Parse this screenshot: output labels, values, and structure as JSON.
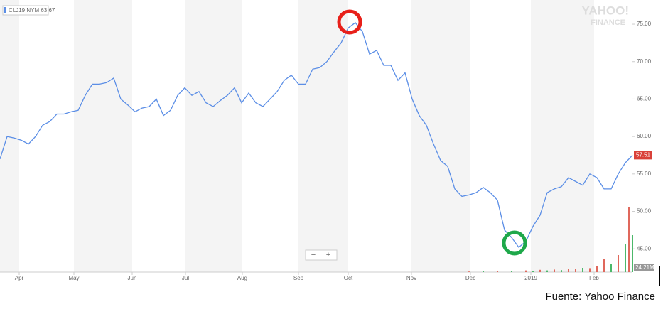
{
  "chart_data": {
    "type": "line",
    "x": [
      0,
      1,
      2,
      3,
      4,
      5,
      6,
      7,
      8,
      9,
      10,
      11,
      12,
      13,
      14,
      15,
      16,
      17,
      18,
      19,
      20,
      21,
      22,
      23,
      24,
      25,
      26,
      27,
      28,
      29,
      30,
      31,
      32,
      33,
      34,
      35,
      36,
      37,
      38,
      39,
      40,
      41,
      42,
      43,
      44,
      45,
      46,
      47,
      48,
      49,
      50,
      51,
      52,
      53,
      54,
      55,
      56,
      57,
      58,
      59,
      60,
      61,
      62,
      63,
      64,
      65,
      66,
      67,
      68,
      69,
      70,
      71,
      72,
      73,
      74,
      75,
      76,
      77,
      78,
      79,
      80,
      81,
      82,
      83,
      84,
      85,
      86,
      87,
      88,
      89
    ],
    "series": [
      {
        "name": "CLJ19 NYM 63.67",
        "color": "#5b8ee6",
        "values": [
          57,
          60,
          59.8,
          59.5,
          59,
          60,
          61.5,
          62,
          63,
          63,
          63.3,
          63.5,
          65.5,
          67,
          67,
          67.2,
          67.8,
          65,
          64.2,
          63.3,
          63.8,
          64,
          65,
          62.8,
          63.5,
          65.5,
          66.5,
          65.5,
          66,
          64.5,
          64,
          64.8,
          65.5,
          66.5,
          64.5,
          65.8,
          64.5,
          64,
          65,
          66,
          67.5,
          68.2,
          67,
          67,
          69,
          69.2,
          70,
          71.3,
          72.5,
          74.5,
          75.2,
          74,
          71,
          71.5,
          69.5,
          69.5,
          67.5,
          68.5,
          65,
          62.8,
          61.5,
          59,
          56.8,
          56,
          53,
          52,
          52.2,
          52.5,
          53.2,
          52.5,
          51.5,
          47.5,
          46.5,
          45.2,
          46,
          48,
          49.5,
          52.5,
          53,
          53.3,
          54.5,
          54,
          53.5,
          55,
          54.5,
          53,
          53,
          55,
          56.5,
          57.5
        ]
      }
    ],
    "xlim": [
      0,
      89
    ],
    "xticks": [
      {
        "value": 2.7,
        "label": "Apr"
      },
      {
        "value": 10.4,
        "label": "May"
      },
      {
        "value": 18.6,
        "label": "Jun"
      },
      {
        "value": 26.1,
        "label": "Jul"
      },
      {
        "value": 34.1,
        "label": "Aug"
      },
      {
        "value": 42,
        "label": "Sep"
      },
      {
        "value": 49,
        "label": "Oct"
      },
      {
        "value": 57.9,
        "label": "Nov"
      },
      {
        "value": 66.2,
        "label": "Dec"
      },
      {
        "value": 74.7,
        "label": "2019"
      },
      {
        "value": 83.6,
        "label": "Feb"
      }
    ],
    "ylim": [
      41.89,
      78.23
    ],
    "yticks": [
      {
        "value": 45,
        "label": "45.00"
      },
      {
        "value": 50,
        "label": "50.00"
      },
      {
        "value": 55,
        "label": "55.00"
      },
      {
        "value": 60,
        "label": "60.00"
      },
      {
        "value": 65,
        "label": "65.00"
      },
      {
        "value": 70,
        "label": "70.00"
      },
      {
        "value": 75,
        "label": "75.00"
      }
    ],
    "last_price": 57.51,
    "volume": {
      "label": "24.21M",
      "ylim": [
        0,
        250
      ],
      "x": [
        66,
        68,
        70,
        72,
        74,
        75,
        76,
        77,
        78,
        79,
        80,
        81,
        82,
        83,
        84,
        85,
        86,
        87,
        88,
        88.5,
        89
      ],
      "values": [
        2,
        3,
        3,
        4,
        6,
        5,
        8,
        6,
        9,
        7,
        10,
        12,
        15,
        14,
        20,
        45,
        30,
        60,
        100,
        230,
        130
      ],
      "colors": [
        "#e0685c",
        "#4cb86a",
        "#e0685c",
        "#4cb86a",
        "#e0685c",
        "#4cb86a",
        "#e0685c",
        "#4cb86a",
        "#e0685c",
        "#4cb86a",
        "#e0685c",
        "#e0685c",
        "#4cb86a",
        "#e0685c",
        "#e0685c",
        "#e0685c",
        "#4cb86a",
        "#e0685c",
        "#4cb86a",
        "#e0685c",
        "#4cb86a"
      ]
    },
    "watermark": [
      "YAHOO!",
      "FINANCE"
    ],
    "zoom_controls": [
      "−",
      "+"
    ],
    "source": "Fuente: Yahoo Finance"
  }
}
